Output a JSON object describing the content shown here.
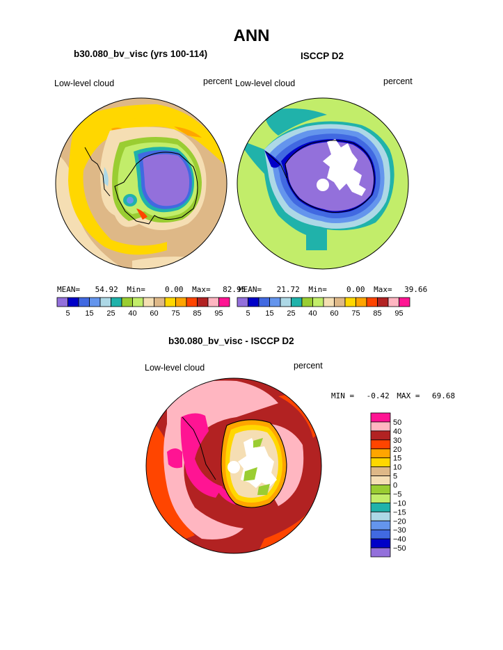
{
  "page": {
    "title": "ANN"
  },
  "panels": [
    {
      "id": "model",
      "title": "b30.080_bv_visc (yrs 100-114)",
      "left_label": "Low-level cloud",
      "right_label": "percent",
      "stats": {
        "mean_label": "MEAN=",
        "mean": "54.92",
        "min_label": "Min=",
        "min": "0.00",
        "max_label": "Max=",
        "max": "82.95"
      }
    },
    {
      "id": "obs",
      "title": "ISCCP D2",
      "left_label": "Low-level cloud",
      "right_label": "percent",
      "stats": {
        "mean_label": "MEAN=",
        "mean": "21.72",
        "min_label": "Min=",
        "min": "0.00",
        "max_label": "Max=",
        "max": "39.66"
      }
    }
  ],
  "diff_panel": {
    "title": "b30.080_bv_visc - ISCCP D2",
    "left_label": "Low-level cloud",
    "right_label": "percent",
    "stats": {
      "min_label": "MIN =",
      "min": "-0.42",
      "max_label": "MAX =",
      "max": "69.68"
    }
  },
  "chart_data": [
    {
      "type": "heatmap",
      "projection": "south-polar-stereographic",
      "title": "b30.080_bv_visc (yrs 100-114)",
      "colorbar": {
        "orientation": "horizontal",
        "levels": [
          5,
          10,
          15,
          20,
          25,
          30,
          40,
          50,
          60,
          70,
          75,
          80,
          85,
          90,
          95
        ],
        "tick_labels": [
          "5",
          "15",
          "25",
          "40",
          "60",
          "75",
          "85",
          "95"
        ],
        "colors": [
          "#9370db",
          "#0000c8",
          "#4169e1",
          "#6495ed",
          "#add8e6",
          "#20b2aa",
          "#9acd32",
          "#c2ed6a",
          "#f5deb3",
          "#deb887",
          "#ffd700",
          "#ffa500",
          "#ff4500",
          "#b22222",
          "#ffb6c1",
          "#ff1493"
        ]
      }
    },
    {
      "type": "heatmap",
      "projection": "south-polar-stereographic",
      "title": "ISCCP D2",
      "colorbar": {
        "orientation": "horizontal",
        "levels": [
          5,
          10,
          15,
          20,
          25,
          30,
          40,
          50,
          60,
          70,
          75,
          80,
          85,
          90,
          95
        ],
        "tick_labels": [
          "5",
          "15",
          "25",
          "40",
          "60",
          "75",
          "85",
          "95"
        ],
        "colors": [
          "#9370db",
          "#0000c8",
          "#4169e1",
          "#6495ed",
          "#add8e6",
          "#20b2aa",
          "#9acd32",
          "#c2ed6a",
          "#f5deb3",
          "#deb887",
          "#ffd700",
          "#ffa500",
          "#ff4500",
          "#b22222",
          "#ffb6c1",
          "#ff1493"
        ]
      }
    },
    {
      "type": "heatmap",
      "projection": "south-polar-stereographic",
      "title": "b30.080_bv_visc - ISCCP D2",
      "colorbar": {
        "orientation": "vertical",
        "levels": [
          50,
          40,
          30,
          20,
          15,
          10,
          5,
          0,
          -5,
          -10,
          -15,
          -20,
          -30,
          -40,
          -50
        ],
        "tick_labels": [
          "50",
          "40",
          "30",
          "20",
          "15",
          "10",
          "5",
          "0",
          "−5",
          "−10",
          "−15",
          "−20",
          "−30",
          "−40",
          "−50"
        ],
        "colors": [
          "#ff1493",
          "#ffb6c1",
          "#b22222",
          "#ff4500",
          "#ffa500",
          "#ffd700",
          "#deb887",
          "#f5deb3",
          "#9acd32",
          "#c2ed6a",
          "#20b2aa",
          "#add8e6",
          "#6495ed",
          "#4169e1",
          "#0000c8",
          "#9370db"
        ]
      }
    }
  ]
}
